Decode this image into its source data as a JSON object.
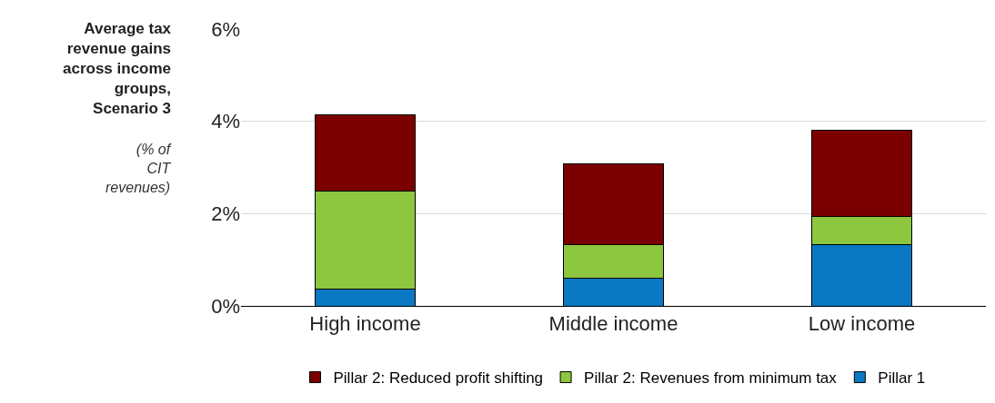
{
  "chart_data": {
    "type": "bar",
    "stacked": true,
    "title": "Average tax revenue gains across income groups, Scenario 3",
    "subtitle": "(% of CIT revenues)",
    "categories": [
      "High income",
      "Middle income",
      "Low income"
    ],
    "series": [
      {
        "name": "Pillar 1",
        "color": "#0a78c2",
        "values": [
          0.36,
          0.6,
          1.32
        ]
      },
      {
        "name": "Pillar 2: Revenues from minimum tax",
        "color": "#8dc63f",
        "values": [
          2.13,
          0.73,
          0.61
        ]
      },
      {
        "name": "Pillar 2: Reduced profit shifting",
        "color": "#7b0000",
        "values": [
          1.65,
          1.74,
          1.87
        ]
      }
    ],
    "ylim": [
      0,
      6
    ],
    "yticks": [
      {
        "value": 0,
        "label": "0%"
      },
      {
        "value": 2,
        "label": "2%"
      },
      {
        "value": 4,
        "label": "4%"
      },
      {
        "value": 6,
        "label": "6%"
      }
    ],
    "grid": "y",
    "legend": "bottom"
  }
}
